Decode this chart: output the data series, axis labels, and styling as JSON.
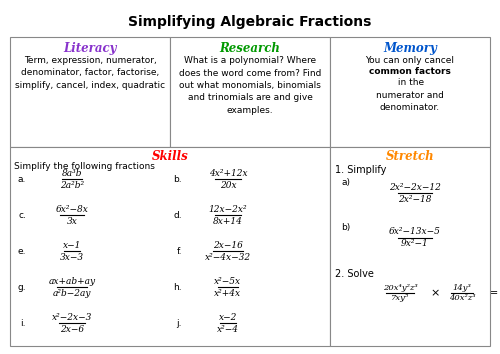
{
  "title": "Simplifying Algebraic Fractions",
  "title_fontsize": 10,
  "bg_color": "#ffffff",
  "top_headers": [
    "Literacy",
    "Research",
    "Memory"
  ],
  "top_header_colors": [
    "#8833cc",
    "#009900",
    "#0055cc"
  ],
  "top_contents": [
    "Term, expression, numerator,\ndenominator, factor, factorise,\nsimplify, cancel, index, quadratic",
    "What is a polynomial? Where\ndoes the word come from? Find\nout what monomials, binomials\nand trinomials are and give\nexamples.",
    "You can only cancel\nCOMMON_BOLD in the\nnumerator and\ndenominator."
  ],
  "skills_header": "Skills",
  "skills_color": "#ff0000",
  "stretch_header": "Stretch",
  "stretch_color": "#ff8800",
  "skills_intro": "Simplify the following fractions",
  "problems": [
    {
      "label": "a.",
      "num": "8a³b",
      "den": "2a²b²"
    },
    {
      "label": "b.",
      "num": "4x²+12x",
      "den": "20x"
    },
    {
      "label": "c.",
      "num": "6x²−8x",
      "den": "3x"
    },
    {
      "label": "d.",
      "num": "12x−2x²",
      "den": "8x+14"
    },
    {
      "label": "e.",
      "num": "x−1",
      "den": "3x−3"
    },
    {
      "label": "f.",
      "num": "2x−16",
      "den": "x²−4x−32"
    },
    {
      "label": "g.",
      "num": "ax+ab+ay",
      "den": "a²b−2ay"
    },
    {
      "label": "h.",
      "num": "x²−5x",
      "den": "x²+4x"
    },
    {
      "label": "i.",
      "num": "x²−2x−3",
      "den": "2x−6"
    },
    {
      "label": "j.",
      "num": "x−2",
      "den": "x²−4"
    }
  ],
  "stretch_a_num": "2x²−2x−12",
  "stretch_a_den": "2x²−18",
  "stretch_b_num": "6x²−13x−5",
  "stretch_b_den": "9x²−1",
  "solve_n1": "20x⁴y²z³",
  "solve_d1": "7xy⁵",
  "solve_n2": "14y³",
  "solve_d2": "40x²z³"
}
